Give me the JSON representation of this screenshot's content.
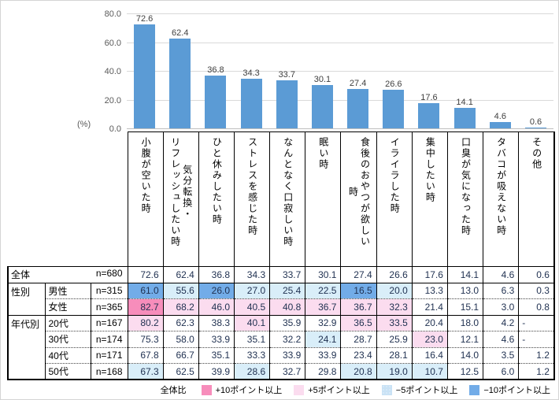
{
  "unit_label": "(%)",
  "y_axis": {
    "ticks": [
      "80.0",
      "60.0",
      "40.0",
      "20.0",
      "0.0"
    ],
    "max": 80
  },
  "chart_data": {
    "type": "bar",
    "categories": [
      "小腹が空いた時",
      "気分転換・リフレッシュしたい時",
      "ひと休みしたい時",
      "ストレスを感じた時",
      "なんとなく口寂しい時",
      "眠い時",
      "食後のおやつが欲しい時",
      "イライラした時",
      "集中したい時",
      "口臭が気になった時",
      "タバコが吸えない時",
      "その他"
    ],
    "values": [
      72.6,
      62.4,
      36.8,
      34.3,
      33.7,
      30.1,
      27.4,
      26.6,
      17.6,
      14.1,
      4.6,
      0.6
    ],
    "title": "",
    "xlabel": "",
    "ylabel": "(%)",
    "ylim": [
      0,
      80
    ],
    "grid": true,
    "bar_color": "#5b9bd5"
  },
  "table": {
    "headers": [
      "小腹が空いた時",
      "気分転換・\nリフレッシュしたい時",
      "ひと休みしたい時",
      "ストレスを感じた時",
      "なんとなく口寂しい時",
      "眠い時",
      "食後のおやつが欲しい\n時",
      "イライラした時",
      "集中したい時",
      "口臭が気になった時",
      "タバコが吸えない時",
      "その他"
    ],
    "rows": [
      {
        "type": "total",
        "label": "全体",
        "n": "n=680",
        "border": "solidb",
        "values": [
          "72.6",
          "62.4",
          "36.8",
          "34.3",
          "33.7",
          "30.1",
          "27.4",
          "26.6",
          "17.6",
          "14.1",
          "4.6",
          "0.6"
        ],
        "highlights": [
          "",
          "",
          "",
          "",
          "",
          "",
          "",
          "",
          "",
          "",
          "",
          ""
        ]
      },
      {
        "type": "sub",
        "group": "性別",
        "group_span": 2,
        "label": "男性",
        "n": "n=315",
        "border": "dotted",
        "values": [
          "61.0",
          "55.6",
          "26.0",
          "27.0",
          "25.4",
          "22.5",
          "16.5",
          "20.0",
          "13.3",
          "13.0",
          "6.3",
          "0.3"
        ],
        "highlights": [
          "m10",
          "m5",
          "m10",
          "m5",
          "m5",
          "m5",
          "m10",
          "m5",
          "",
          "",
          "",
          ""
        ]
      },
      {
        "type": "sub",
        "label": "女性",
        "n": "n=365",
        "border": "solidb",
        "values": [
          "82.7",
          "68.2",
          "46.0",
          "40.5",
          "40.8",
          "36.7",
          "36.7",
          "32.3",
          "21.4",
          "15.1",
          "3.0",
          "0.8"
        ],
        "highlights": [
          "p10",
          "p5",
          "p5",
          "p5",
          "p5",
          "p5",
          "p5",
          "p5",
          "",
          "",
          "",
          ""
        ]
      },
      {
        "type": "sub",
        "group": "年代別",
        "group_span": 4,
        "label": "20代",
        "n": "n=167",
        "border": "dotted",
        "values": [
          "80.2",
          "62.3",
          "38.3",
          "40.1",
          "35.9",
          "32.9",
          "36.5",
          "33.5",
          "20.4",
          "18.0",
          "4.2",
          "-"
        ],
        "highlights": [
          "p5",
          "",
          "",
          "p5",
          "",
          "",
          "p5",
          "p5",
          "",
          "",
          "",
          ""
        ]
      },
      {
        "type": "sub",
        "label": "30代",
        "n": "n=174",
        "border": "dotted",
        "values": [
          "75.3",
          "58.0",
          "33.9",
          "35.1",
          "32.2",
          "24.1",
          "28.7",
          "25.9",
          "23.0",
          "12.1",
          "4.6",
          "-"
        ],
        "highlights": [
          "",
          "",
          "",
          "",
          "",
          "m5",
          "",
          "",
          "p5",
          "",
          "",
          ""
        ]
      },
      {
        "type": "sub",
        "label": "40代",
        "n": "n=171",
        "border": "dotted",
        "values": [
          "67.8",
          "66.7",
          "35.1",
          "33.3",
          "33.9",
          "33.9",
          "23.4",
          "28.1",
          "16.4",
          "14.0",
          "3.5",
          "1.2"
        ],
        "highlights": [
          "",
          "",
          "",
          "",
          "",
          "",
          "",
          "",
          "",
          "",
          "",
          ""
        ]
      },
      {
        "type": "sub",
        "label": "50代",
        "n": "n=168",
        "border": "outer",
        "values": [
          "67.3",
          "62.5",
          "39.9",
          "28.6",
          "32.7",
          "29.8",
          "20.8",
          "19.0",
          "10.7",
          "12.5",
          "6.0",
          "1.2"
        ],
        "highlights": [
          "m5",
          "",
          "",
          "m5",
          "",
          "",
          "m5",
          "m5",
          "m5",
          "",
          "",
          ""
        ]
      }
    ]
  },
  "highlight_colors": {
    "p10": "#f78dbb",
    "p5": "#fbdcef",
    "m5": "#d9eef9",
    "m10": "#72ace8"
  },
  "legend": {
    "title": "全体比",
    "items": [
      {
        "label": "+10ポイント以上",
        "color": "#f78dbb",
        "pattern": ""
      },
      {
        "label": "+5ポイント以上",
        "color": "#fbdcef",
        "pattern": ""
      },
      {
        "label": "−5ポイント以上",
        "color": "#c9e2f5",
        "pattern": "dots"
      },
      {
        "label": "−10ポイント以上",
        "color": "#72ace8",
        "pattern": ""
      }
    ]
  }
}
